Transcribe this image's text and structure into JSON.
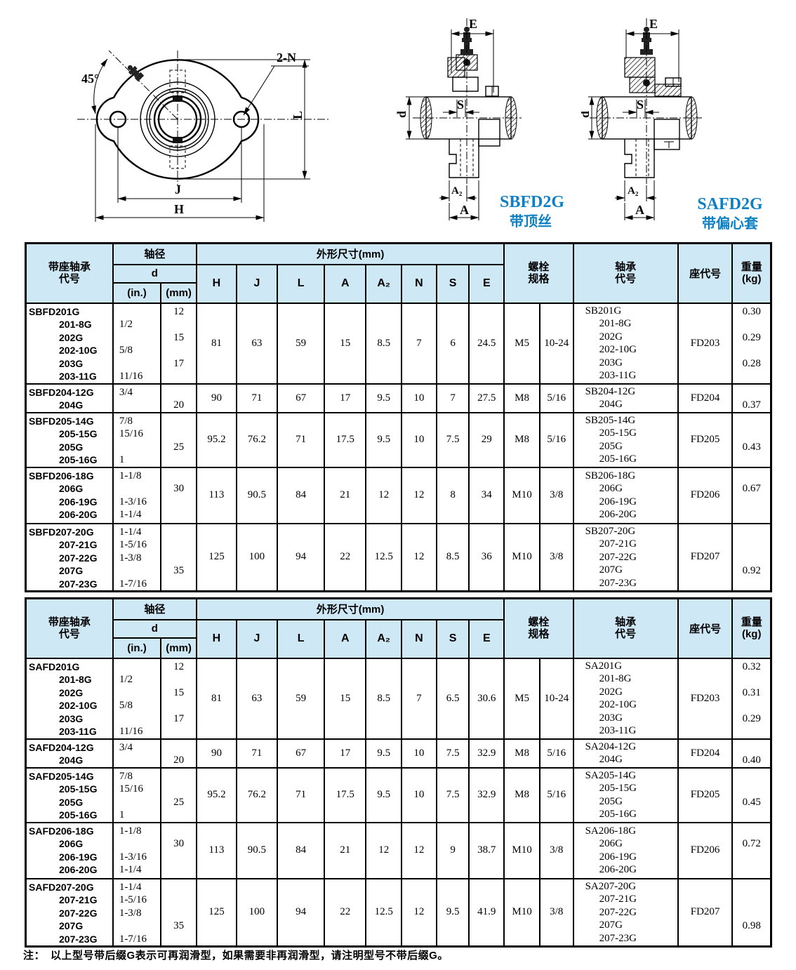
{
  "colors": {
    "header_bg": "#cfe8f6",
    "caption_blue": "#0d80c4",
    "line_black": "#000000"
  },
  "drawing_labels": {
    "front": {
      "angle": "45°",
      "bolt_note": "2-N",
      "l": "L",
      "j": "J",
      "h": "H"
    },
    "sbfd": {
      "e": "E",
      "s": "S",
      "d": "d",
      "a2": "A₂",
      "a": "A",
      "model": "SBFD2G",
      "desc": "带顶丝"
    },
    "safd": {
      "e": "E",
      "s": "S",
      "d": "d",
      "a2": "A₂",
      "a": "A",
      "model": "SAFD2G",
      "desc": "带偏心套"
    }
  },
  "table_header": {
    "code": "带座轴承\n代号",
    "shaft": "轴径",
    "d": "d",
    "in": "(in.)",
    "mm": "(mm)",
    "dims_title": "外形尺寸(mm)",
    "dim_cols": [
      "H",
      "J",
      "L",
      "A",
      "A₂",
      "N",
      "S",
      "E"
    ],
    "bolt": "螺栓\n规格",
    "bearing": "轴承\n代号",
    "seat": "座代号",
    "weight": "重量\n(kg)"
  },
  "tables": [
    {
      "id": "sbfd-spec-table",
      "groups": [
        {
          "codes": [
            "SBFD201G",
            "201-8G",
            "202G",
            "202-10G",
            "203G",
            "203-11G"
          ],
          "in": [
            "",
            "1/2",
            "",
            "5/8",
            "",
            "11/16"
          ],
          "mm": [
            "12",
            "",
            "15",
            "",
            "17",
            ""
          ],
          "dims": [
            "81",
            "63",
            "59",
            "15",
            "8.5",
            "7",
            "6",
            "24.5"
          ],
          "bolt_m": "M5",
          "bolt_in": "10-24",
          "bearing": [
            "SB201G",
            "201-8G",
            "202G",
            "202-10G",
            "203G",
            "203-11G"
          ],
          "seat": "FD203",
          "weight": [
            "0.30",
            "",
            "0.29",
            "",
            "0.28",
            ""
          ]
        },
        {
          "codes": [
            "SBFD204-12G",
            "204G"
          ],
          "in": [
            "3/4",
            ""
          ],
          "mm": [
            "",
            "20"
          ],
          "dims": [
            "90",
            "71",
            "67",
            "17",
            "9.5",
            "10",
            "7",
            "27.5"
          ],
          "bolt_m": "M8",
          "bolt_in": "5/16",
          "bearing": [
            "SB204-12G",
            "204G"
          ],
          "seat": "FD204",
          "weight": [
            "",
            "0.37"
          ]
        },
        {
          "codes": [
            "SBFD205-14G",
            "205-15G",
            "205G",
            "205-16G"
          ],
          "in": [
            "7/8",
            "15/16",
            "",
            "1"
          ],
          "mm": [
            "",
            "",
            "25",
            ""
          ],
          "dims": [
            "95.2",
            "76.2",
            "71",
            "17.5",
            "9.5",
            "10",
            "7.5",
            "29"
          ],
          "bolt_m": "M8",
          "bolt_in": "5/16",
          "bearing": [
            "SB205-14G",
            "205-15G",
            "205G",
            "205-16G"
          ],
          "seat": "FD205",
          "weight": [
            "",
            "",
            "0.43",
            ""
          ]
        },
        {
          "codes": [
            "SBFD206-18G",
            "206G",
            "206-19G",
            "206-20G"
          ],
          "in": [
            "1-1/8",
            "",
            "1-3/16",
            "1-1/4"
          ],
          "mm": [
            "",
            "30",
            "",
            ""
          ],
          "dims": [
            "113",
            "90.5",
            "84",
            "21",
            "12",
            "12",
            "8",
            "34"
          ],
          "bolt_m": "M10",
          "bolt_in": "3/8",
          "bearing": [
            "SB206-18G",
            "206G",
            "206-19G",
            "206-20G"
          ],
          "seat": "FD206",
          "weight": [
            "",
            "0.67",
            "",
            ""
          ]
        },
        {
          "codes": [
            "SBFD207-20G",
            "207-21G",
            "207-22G",
            "207G",
            "207-23G"
          ],
          "in": [
            "1-1/4",
            "1-5/16",
            "1-3/8",
            "",
            "1-7/16"
          ],
          "mm": [
            "",
            "",
            "",
            "35",
            ""
          ],
          "dims": [
            "125",
            "100",
            "94",
            "22",
            "12.5",
            "12",
            "8.5",
            "36"
          ],
          "bolt_m": "M10",
          "bolt_in": "3/8",
          "bearing": [
            "SB207-20G",
            "207-21G",
            "207-22G",
            "207G",
            "207-23G"
          ],
          "seat": "FD207",
          "weight": [
            "",
            "",
            "",
            "0.92",
            ""
          ]
        }
      ]
    },
    {
      "id": "safd-spec-table",
      "groups": [
        {
          "codes": [
            "SAFD201G",
            "201-8G",
            "202G",
            "202-10G",
            "203G",
            "203-11G"
          ],
          "in": [
            "",
            "1/2",
            "",
            "5/8",
            "",
            "11/16"
          ],
          "mm": [
            "12",
            "",
            "15",
            "",
            "17",
            ""
          ],
          "dims": [
            "81",
            "63",
            "59",
            "15",
            "8.5",
            "7",
            "6.5",
            "30.6"
          ],
          "bolt_m": "M5",
          "bolt_in": "10-24",
          "bearing": [
            "SA201G",
            "201-8G",
            "202G",
            "202-10G",
            "203G",
            "203-11G"
          ],
          "seat": "FD203",
          "weight": [
            "0.32",
            "",
            "0.31",
            "",
            "0.29",
            ""
          ]
        },
        {
          "codes": [
            "SAFD204-12G",
            "204G"
          ],
          "in": [
            "3/4",
            ""
          ],
          "mm": [
            "",
            "20"
          ],
          "dims": [
            "90",
            "71",
            "67",
            "17",
            "9.5",
            "10",
            "7.5",
            "32.9"
          ],
          "bolt_m": "M8",
          "bolt_in": "5/16",
          "bearing": [
            "SA204-12G",
            "204G"
          ],
          "seat": "FD204",
          "weight": [
            "",
            "0.40"
          ]
        },
        {
          "codes": [
            "SAFD205-14G",
            "205-15G",
            "205G",
            "205-16G"
          ],
          "in": [
            "7/8",
            "15/16",
            "",
            "1"
          ],
          "mm": [
            "",
            "",
            "25",
            ""
          ],
          "dims": [
            "95.2",
            "76.2",
            "71",
            "17.5",
            "9.5",
            "10",
            "7.5",
            "32.9"
          ],
          "bolt_m": "M8",
          "bolt_in": "5/16",
          "bearing": [
            "SA205-14G",
            "205-15G",
            "205G",
            "205-16G"
          ],
          "seat": "FD205",
          "weight": [
            "",
            "",
            "0.45",
            ""
          ]
        },
        {
          "codes": [
            "SAFD206-18G",
            "206G",
            "206-19G",
            "206-20G"
          ],
          "in": [
            "1-1/8",
            "",
            "1-3/16",
            "1-1/4"
          ],
          "mm": [
            "",
            "30",
            "",
            ""
          ],
          "dims": [
            "113",
            "90.5",
            "84",
            "21",
            "12",
            "12",
            "9",
            "38.7"
          ],
          "bolt_m": "M10",
          "bolt_in": "3/8",
          "bearing": [
            "SA206-18G",
            "206G",
            "206-19G",
            "206-20G"
          ],
          "seat": "FD206",
          "weight": [
            "",
            "0.72",
            "",
            ""
          ]
        },
        {
          "codes": [
            "SAFD207-20G",
            "207-21G",
            "207-22G",
            "207G",
            "207-23G"
          ],
          "in": [
            "1-1/4",
            "1-5/16",
            "1-3/8",
            "",
            "1-7/16"
          ],
          "mm": [
            "",
            "",
            "",
            "35",
            ""
          ],
          "dims": [
            "125",
            "100",
            "94",
            "22",
            "12.5",
            "12",
            "9.5",
            "41.9"
          ],
          "bolt_m": "M10",
          "bolt_in": "3/8",
          "bearing": [
            "SA207-20G",
            "207-21G",
            "207-22G",
            "207G",
            "207-23G"
          ],
          "seat": "FD207",
          "weight": [
            "",
            "",
            "",
            "0.98",
            ""
          ]
        }
      ]
    }
  ],
  "note": "注：　以上型号带后缀G表示可再润滑型，如果需要非再润滑型，请注明型号不带后缀G。"
}
